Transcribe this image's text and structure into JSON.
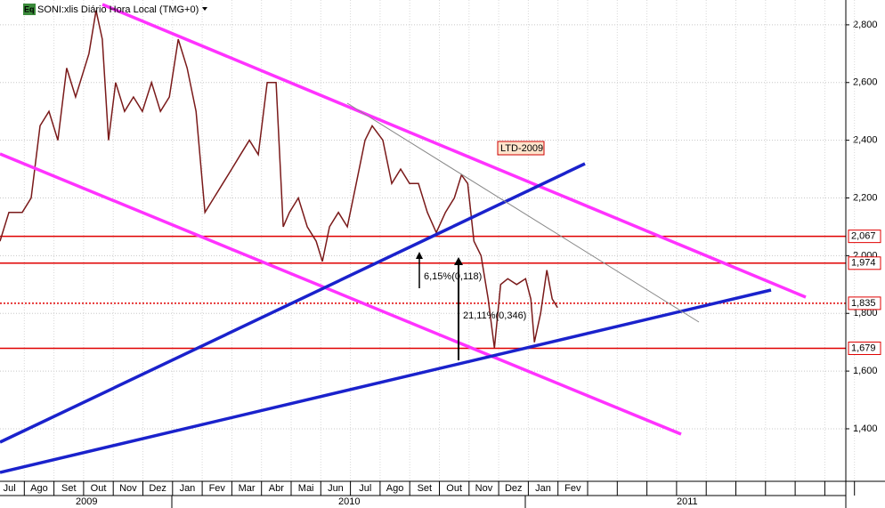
{
  "chart_data": {
    "type": "line",
    "title": "SONI:xlis Diário Hora Local (TMG+0)",
    "icon": "Eq",
    "categories": [
      "Jul",
      "Ago",
      "Set",
      "Out",
      "Nov",
      "Dez",
      "Jan",
      "Fev",
      "Mar",
      "Abr",
      "Mai",
      "Jun",
      "Jul",
      "Ago",
      "Set",
      "Out",
      "Nov",
      "Dez",
      "Jan",
      "Fev",
      null,
      null,
      null,
      null,
      null,
      null,
      null,
      null,
      null
    ],
    "years": [
      "2009",
      "2010",
      "2011"
    ],
    "xlim": [
      0.18,
      28.7
    ],
    "ylim": [
      1218,
      2886
    ],
    "yticks": [
      {
        "value": 1400,
        "label": "1,400"
      },
      {
        "value": 1600,
        "label": "1,600"
      },
      {
        "value": 1800,
        "label": "1,800"
      },
      {
        "value": 2000,
        "label": "2,000"
      },
      {
        "value": 2200,
        "label": "2,200"
      },
      {
        "value": 2400,
        "label": "2,400"
      },
      {
        "value": 2600,
        "label": "2,600"
      },
      {
        "value": 2800,
        "label": "2,800"
      }
    ],
    "grid": true,
    "series": [
      {
        "name": "SONI:xlis",
        "color": "#7a1a1a",
        "x": [
          0.18,
          0.48,
          0.93,
          1.23,
          1.53,
          1.83,
          2.13,
          2.43,
          2.73,
          3.18,
          3.42,
          3.63,
          3.84,
          4.08,
          4.38,
          4.68,
          4.98,
          5.29,
          5.59,
          5.89,
          6.19,
          6.49,
          6.79,
          7.09,
          7.39,
          7.69,
          7.99,
          8.29,
          8.59,
          8.89,
          9.19,
          9.49,
          9.73,
          9.94,
          10.24,
          10.54,
          10.84,
          11.05,
          11.29,
          11.59,
          11.89,
          12.19,
          12.49,
          12.73,
          13.09,
          13.39,
          13.69,
          13.99,
          14.29,
          14.59,
          14.89,
          15.2,
          15.5,
          15.74,
          15.95,
          16.16,
          16.4,
          16.64,
          16.85,
          17.06,
          17.3,
          17.6,
          17.9,
          18.08,
          18.2,
          18.41,
          18.62,
          18.8,
          18.98
        ],
        "values": [
          2050,
          2150,
          2150,
          2200,
          2450,
          2500,
          2400,
          2650,
          2550,
          2700,
          2850,
          2750,
          2400,
          2600,
          2500,
          2550,
          2500,
          2600,
          2500,
          2550,
          2750,
          2650,
          2500,
          2150,
          2200,
          2250,
          2300,
          2350,
          2400,
          2350,
          2600,
          2600,
          2100,
          2150,
          2200,
          2100,
          2050,
          1980,
          2100,
          2150,
          2100,
          2250,
          2400,
          2450,
          2400,
          2250,
          2300,
          2250,
          2250,
          2150,
          2080,
          2150,
          2200,
          2280,
          2250,
          2050,
          2000,
          1850,
          1680,
          1900,
          1920,
          1900,
          1920,
          1850,
          1700,
          1800,
          1950,
          1850,
          1820
        ]
      }
    ],
    "levels": [
      {
        "value": 2067,
        "label": "2,067",
        "style": "solid"
      },
      {
        "value": 1974,
        "label": "1,974",
        "style": "solid"
      },
      {
        "value": 1835,
        "label": "1,835",
        "style": "dotted"
      },
      {
        "value": 1679,
        "label": "1,679",
        "style": "solid"
      }
    ],
    "annotations": [
      "LTD-2009",
      "6,15%(0,118)",
      "21,11%(0,346)"
    ]
  }
}
